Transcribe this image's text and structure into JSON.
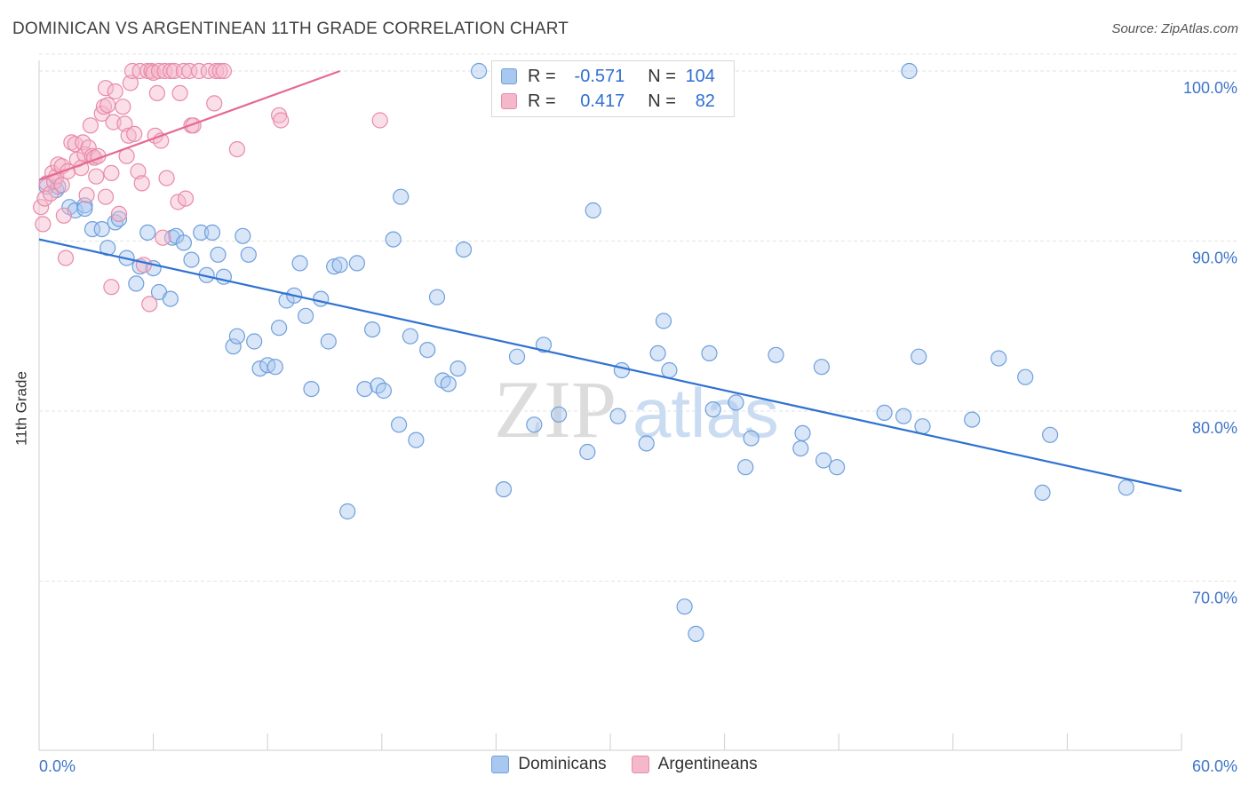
{
  "header": {
    "title": "DOMINICAN VS ARGENTINEAN 11TH GRADE CORRELATION CHART",
    "source": "Source: ZipAtlas.com"
  },
  "watermark": {
    "part1": "ZIP",
    "part2": "atlas"
  },
  "legend": {
    "rows": [
      {
        "r_label": "R =",
        "r_value": "-0.571",
        "n_label": "N =",
        "n_value": "104"
      },
      {
        "r_label": "R =",
        "r_value": "0.417",
        "n_label": "N =",
        "n_value": "82"
      }
    ]
  },
  "bottom_legend": {
    "series1": "Dominicans",
    "series2": "Argentineans"
  },
  "colors": {
    "blue_fill": "#a8c8f0",
    "blue_stroke": "#6f9fdc",
    "blue_line": "#2f72d2",
    "pink_fill": "#f5b8cb",
    "pink_stroke": "#e98aa8",
    "pink_line": "#e56a90",
    "tick_label": "#3d74c9"
  },
  "chart_data": {
    "type": "scatter",
    "title": "DOMINICAN VS ARGENTINEAN 11TH GRADE CORRELATION CHART",
    "xlabel": "",
    "ylabel": "11th Grade",
    "xlim": [
      0,
      60
    ],
    "ylim": [
      61,
      102
    ],
    "x_tick_labels": [
      "0.0%",
      "60.0%"
    ],
    "y_ticks": [
      70,
      80,
      90,
      100
    ],
    "y_tick_labels": [
      "70.0%",
      "80.0%",
      "90.0%",
      "100.0%"
    ],
    "grid": true,
    "legend_position": "top-center",
    "series": [
      {
        "name": "Dominicans",
        "color": "#6f9fdc",
        "trend": {
          "x": [
            0,
            60
          ],
          "y": [
            90.1,
            75.3
          ]
        },
        "points": [
          [
            0.4,
            93.2
          ],
          [
            0.9,
            93.0
          ],
          [
            1.0,
            93.2
          ],
          [
            1.6,
            92.0
          ],
          [
            1.9,
            91.8
          ],
          [
            2.4,
            92.1
          ],
          [
            2.4,
            91.9
          ],
          [
            2.8,
            90.7
          ],
          [
            3.3,
            90.7
          ],
          [
            3.6,
            89.6
          ],
          [
            4.0,
            91.1
          ],
          [
            4.2,
            91.3
          ],
          [
            4.6,
            89.0
          ],
          [
            5.1,
            87.5
          ],
          [
            5.3,
            88.5
          ],
          [
            5.7,
            90.5
          ],
          [
            6.0,
            88.4
          ],
          [
            6.3,
            87.0
          ],
          [
            6.9,
            86.6
          ],
          [
            7.0,
            90.2
          ],
          [
            7.2,
            90.3
          ],
          [
            7.6,
            89.9
          ],
          [
            8.0,
            88.9
          ],
          [
            8.5,
            90.5
          ],
          [
            8.8,
            88.0
          ],
          [
            9.1,
            90.5
          ],
          [
            9.4,
            89.2
          ],
          [
            9.7,
            87.9
          ],
          [
            10.2,
            83.8
          ],
          [
            10.4,
            84.4
          ],
          [
            10.7,
            90.3
          ],
          [
            11.0,
            89.2
          ],
          [
            11.3,
            84.1
          ],
          [
            11.6,
            82.5
          ],
          [
            12.0,
            82.7
          ],
          [
            12.4,
            82.6
          ],
          [
            12.6,
            84.9
          ],
          [
            13.0,
            86.5
          ],
          [
            13.4,
            86.8
          ],
          [
            13.7,
            88.7
          ],
          [
            14.0,
            85.6
          ],
          [
            14.3,
            81.3
          ],
          [
            14.8,
            86.6
          ],
          [
            15.2,
            84.1
          ],
          [
            15.5,
            88.5
          ],
          [
            15.8,
            88.6
          ],
          [
            16.2,
            74.1
          ],
          [
            16.7,
            88.7
          ],
          [
            17.1,
            81.3
          ],
          [
            17.5,
            84.8
          ],
          [
            17.8,
            81.5
          ],
          [
            18.1,
            81.2
          ],
          [
            18.6,
            90.1
          ],
          [
            18.9,
            79.2
          ],
          [
            19.5,
            84.4
          ],
          [
            19.8,
            78.3
          ],
          [
            19.0,
            92.6
          ],
          [
            20.4,
            83.6
          ],
          [
            20.9,
            86.7
          ],
          [
            21.2,
            81.8
          ],
          [
            21.5,
            81.6
          ],
          [
            22.0,
            82.5
          ],
          [
            22.3,
            89.5
          ],
          [
            23.1,
            100.0
          ],
          [
            24.2,
            100.0
          ],
          [
            24.4,
            75.4
          ],
          [
            25.1,
            83.2
          ],
          [
            26.0,
            79.2
          ],
          [
            26.5,
            83.9
          ],
          [
            27.5,
            100.0
          ],
          [
            27.3,
            79.8
          ],
          [
            28.8,
            77.6
          ],
          [
            29.1,
            91.8
          ],
          [
            30.4,
            79.7
          ],
          [
            30.6,
            82.4
          ],
          [
            31.9,
            78.1
          ],
          [
            32.5,
            83.4
          ],
          [
            32.8,
            85.3
          ],
          [
            33.1,
            82.4
          ],
          [
            33.9,
            68.5
          ],
          [
            34.5,
            66.9
          ],
          [
            35.2,
            83.4
          ],
          [
            35.4,
            80.1
          ],
          [
            36.6,
            80.5
          ],
          [
            37.1,
            76.7
          ],
          [
            37.4,
            78.4
          ],
          [
            38.7,
            83.3
          ],
          [
            40.0,
            77.8
          ],
          [
            40.1,
            78.7
          ],
          [
            41.1,
            82.6
          ],
          [
            41.2,
            77.1
          ],
          [
            41.9,
            76.7
          ],
          [
            44.4,
            79.9
          ],
          [
            45.4,
            79.7
          ],
          [
            45.7,
            100.0
          ],
          [
            46.2,
            83.2
          ],
          [
            46.4,
            79.1
          ],
          [
            49.0,
            79.5
          ],
          [
            50.4,
            83.1
          ],
          [
            51.8,
            82.0
          ],
          [
            52.7,
            75.2
          ],
          [
            53.1,
            78.6
          ],
          [
            57.1,
            75.5
          ]
        ]
      },
      {
        "name": "Argentineans",
        "color": "#e98aa8",
        "trend": {
          "x": [
            0,
            15.8
          ],
          "y": [
            93.6,
            100.0
          ]
        },
        "points": [
          [
            0.1,
            92.0
          ],
          [
            0.2,
            91.0
          ],
          [
            0.3,
            92.5
          ],
          [
            0.4,
            93.4
          ],
          [
            0.6,
            92.8
          ],
          [
            0.7,
            94.0
          ],
          [
            0.8,
            93.5
          ],
          [
            0.9,
            93.8
          ],
          [
            1.0,
            94.5
          ],
          [
            1.2,
            93.3
          ],
          [
            1.2,
            94.4
          ],
          [
            1.3,
            91.5
          ],
          [
            1.4,
            89.0
          ],
          [
            1.5,
            94.1
          ],
          [
            1.7,
            95.8
          ],
          [
            1.9,
            95.7
          ],
          [
            2.0,
            94.8
          ],
          [
            2.2,
            94.3
          ],
          [
            2.3,
            95.8
          ],
          [
            2.4,
            95.1
          ],
          [
            2.5,
            92.7
          ],
          [
            2.6,
            95.5
          ],
          [
            2.7,
            96.8
          ],
          [
            2.8,
            95.0
          ],
          [
            2.9,
            94.9
          ],
          [
            3.0,
            93.8
          ],
          [
            3.1,
            95.0
          ],
          [
            3.3,
            97.5
          ],
          [
            3.4,
            97.9
          ],
          [
            3.5,
            92.6
          ],
          [
            3.5,
            99.0
          ],
          [
            3.6,
            98.0
          ],
          [
            3.8,
            94.0
          ],
          [
            3.8,
            87.3
          ],
          [
            3.9,
            97.0
          ],
          [
            4.0,
            98.8
          ],
          [
            4.2,
            91.6
          ],
          [
            4.4,
            97.9
          ],
          [
            4.5,
            96.9
          ],
          [
            4.6,
            95.0
          ],
          [
            4.7,
            96.2
          ],
          [
            4.8,
            99.3
          ],
          [
            4.9,
            100.0
          ],
          [
            5.0,
            96.3
          ],
          [
            5.2,
            94.1
          ],
          [
            5.3,
            100.0
          ],
          [
            5.4,
            93.4
          ],
          [
            5.5,
            88.6
          ],
          [
            5.7,
            100.0
          ],
          [
            5.8,
            86.3
          ],
          [
            5.9,
            100.0
          ],
          [
            6.0,
            99.9
          ],
          [
            6.1,
            96.2
          ],
          [
            6.2,
            98.7
          ],
          [
            6.3,
            100.0
          ],
          [
            6.4,
            95.9
          ],
          [
            6.5,
            90.2
          ],
          [
            6.6,
            100.0
          ],
          [
            6.7,
            93.7
          ],
          [
            6.9,
            100.0
          ],
          [
            7.1,
            100.0
          ],
          [
            7.3,
            92.3
          ],
          [
            7.4,
            98.7
          ],
          [
            7.6,
            100.0
          ],
          [
            7.7,
            92.5
          ],
          [
            7.9,
            100.0
          ],
          [
            8.0,
            96.8
          ],
          [
            8.1,
            96.8
          ],
          [
            8.4,
            100.0
          ],
          [
            8.9,
            100.0
          ],
          [
            9.2,
            98.1
          ],
          [
            9.3,
            100.0
          ],
          [
            9.5,
            100.0
          ],
          [
            9.7,
            100.0
          ],
          [
            10.4,
            95.4
          ],
          [
            12.6,
            97.4
          ],
          [
            12.7,
            97.1
          ],
          [
            17.9,
            97.1
          ]
        ]
      }
    ]
  }
}
